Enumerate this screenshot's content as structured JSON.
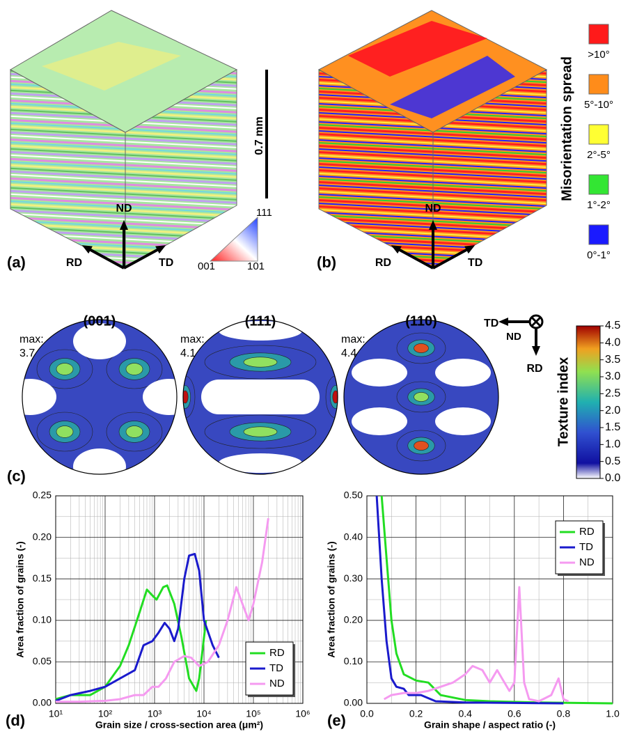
{
  "panels": {
    "a": {
      "label": "(a)",
      "axes": [
        "ND",
        "RD",
        "TD"
      ],
      "scale_bar": "0.7 mm",
      "ipf": [
        "111",
        "001",
        "101"
      ]
    },
    "b": {
      "label": "(b)",
      "axes": [
        "ND",
        "RD",
        "TD"
      ]
    },
    "misorientation_legend": {
      "title": "Misorientation spread",
      "items": [
        {
          "label": ">10°",
          "color": "#ff1a1a"
        },
        {
          "label": "5°-10°",
          "color": "#ff8c1a"
        },
        {
          "label": "2°-5°",
          "color": "#ffff33"
        },
        {
          "label": "1°-2°",
          "color": "#33e633"
        },
        {
          "label": "0°-1°",
          "color": "#1a1aff"
        }
      ]
    },
    "c": {
      "label": "(c)",
      "pole_figures": [
        {
          "title": "(001)",
          "max_label": "max:",
          "max": 3.7
        },
        {
          "title": "(111)",
          "max_label": "max:",
          "max": 4.1
        },
        {
          "title": "(110)",
          "max_label": "max:",
          "max": 4.4
        }
      ],
      "axes": [
        "TD",
        "ND",
        "RD"
      ],
      "colorbar": {
        "title": "Texture index",
        "ticks": [
          {
            "value": 4.5,
            "label": "4.5"
          },
          {
            "value": 4,
            "label": "4.0"
          },
          {
            "value": 3.5,
            "label": "3.5"
          },
          {
            "value": 3,
            "label": "3.0"
          },
          {
            "value": 2.5,
            "label": "2.5"
          },
          {
            "value": 2,
            "label": "2.0"
          },
          {
            "value": 1.5,
            "label": "1.5"
          },
          {
            "value": 1,
            "label": "1.0"
          },
          {
            "value": 0.5,
            "label": "0.5"
          },
          {
            "value": 0,
            "label": "0.0"
          }
        ]
      }
    }
  },
  "chart_data": [
    {
      "type": "line",
      "panel_label": "(d)",
      "xlabel": "Grain size / cross-section area (μm²)",
      "ylabel": "Area fraction of grains (-)",
      "xscale": "log",
      "xlim": [
        10,
        1000000
      ],
      "xticks": [
        {
          "value": 10,
          "label": "10¹"
        },
        {
          "value": 100,
          "label": "10²"
        },
        {
          "value": 1000,
          "label": "10³"
        },
        {
          "value": 10000,
          "label": "10⁴"
        },
        {
          "value": 100000,
          "label": "10⁵"
        },
        {
          "value": 1000000,
          "label": "10⁶"
        }
      ],
      "ylim": [
        0,
        0.25
      ],
      "yticks": [
        {
          "value": 0,
          "label": "0.00"
        },
        {
          "value": 0.05,
          "label": "0.05"
        },
        {
          "value": 0.1,
          "label": "0.10"
        },
        {
          "value": 0.15,
          "label": "0.15"
        },
        {
          "value": 0.2,
          "label": "0.20"
        },
        {
          "value": 0.25,
          "label": "0.25"
        }
      ],
      "grid": true,
      "legend": "lower right",
      "series": [
        {
          "name": "RD",
          "color": "#22dd22",
          "x": [
            10,
            20,
            50,
            100,
            200,
            300,
            500,
            700,
            900,
            1100,
            1500,
            1800,
            2500,
            3500,
            5000,
            7000,
            8000,
            11000
          ],
          "values": [
            0.005,
            0.01,
            0.01,
            0.02,
            0.045,
            0.07,
            0.11,
            0.137,
            0.13,
            0.125,
            0.14,
            0.142,
            0.12,
            0.08,
            0.03,
            0.015,
            0.03,
            0.1
          ]
        },
        {
          "name": "TD",
          "color": "#1a1acc",
          "x": [
            10,
            20,
            50,
            100,
            200,
            400,
            600,
            900,
            1200,
            1600,
            2000,
            2500,
            3000,
            4000,
            5000,
            6500,
            8000,
            10000,
            15000,
            20000
          ],
          "values": [
            0.003,
            0.01,
            0.015,
            0.02,
            0.03,
            0.04,
            0.07,
            0.075,
            0.085,
            0.097,
            0.09,
            0.075,
            0.09,
            0.15,
            0.178,
            0.18,
            0.16,
            0.1,
            0.07,
            0.055
          ]
        },
        {
          "name": "ND",
          "color": "#f59af0",
          "x": [
            10,
            30,
            100,
            200,
            400,
            600,
            900,
            1200,
            1700,
            2500,
            4000,
            5500,
            8000,
            12000,
            20000,
            30000,
            45000,
            60000,
            80000,
            100000,
            150000,
            200000
          ],
          "values": [
            0.002,
            0.002,
            0.003,
            0.005,
            0.01,
            0.01,
            0.02,
            0.02,
            0.03,
            0.05,
            0.057,
            0.055,
            0.045,
            0.05,
            0.07,
            0.1,
            0.14,
            0.12,
            0.1,
            0.12,
            0.17,
            0.223
          ]
        }
      ]
    },
    {
      "type": "line",
      "panel_label": "(e)",
      "xlabel": "Grain shape / aspect ratio (-)",
      "ylabel": "Area fraction of grains (-)",
      "xlim": [
        0,
        1
      ],
      "xticks": [
        {
          "value": 0,
          "label": "0.0"
        },
        {
          "value": 0.2,
          "label": "0.2"
        },
        {
          "value": 0.4,
          "label": "0.4"
        },
        {
          "value": 0.6,
          "label": "0.6"
        },
        {
          "value": 0.8,
          "label": "0.8"
        },
        {
          "value": 1,
          "label": "1.0"
        }
      ],
      "ylim": [
        0,
        0.5
      ],
      "yticks": [
        {
          "value": 0,
          "label": "0.00"
        },
        {
          "value": 0.1,
          "label": "0.10"
        },
        {
          "value": 0.2,
          "label": "0.20"
        },
        {
          "value": 0.3,
          "label": "0.30"
        },
        {
          "value": 0.4,
          "label": "0.40"
        },
        {
          "value": 0.5,
          "label": "0.50"
        }
      ],
      "grid": true,
      "legend": "upper right",
      "series": [
        {
          "name": "RD",
          "color": "#22dd22",
          "x": [
            0.06,
            0.08,
            0.1,
            0.12,
            0.15,
            0.2,
            0.25,
            0.3,
            0.4,
            0.5,
            0.7,
            1.0
          ],
          "values": [
            0.5,
            0.35,
            0.2,
            0.12,
            0.07,
            0.055,
            0.05,
            0.02,
            0.008,
            0.005,
            0.002,
            0
          ]
        },
        {
          "name": "TD",
          "color": "#1a1acc",
          "x": [
            0.04,
            0.06,
            0.08,
            0.1,
            0.12,
            0.15,
            0.17,
            0.22,
            0.28,
            0.4,
            0.6,
            0.8
          ],
          "values": [
            0.5,
            0.3,
            0.15,
            0.06,
            0.04,
            0.035,
            0.02,
            0.02,
            0.005,
            0.002,
            0.001,
            0
          ]
        },
        {
          "name": "ND",
          "color": "#f59af0",
          "x": [
            0.07,
            0.1,
            0.15,
            0.2,
            0.25,
            0.3,
            0.35,
            0.4,
            0.43,
            0.47,
            0.5,
            0.53,
            0.55,
            0.58,
            0.6,
            0.62,
            0.64,
            0.66,
            0.7,
            0.75,
            0.78,
            0.8,
            0.82
          ],
          "values": [
            0.01,
            0.02,
            0.025,
            0.025,
            0.03,
            0.04,
            0.05,
            0.07,
            0.09,
            0.08,
            0.05,
            0.08,
            0.06,
            0.03,
            0.05,
            0.28,
            0.05,
            0.01,
            0.005,
            0.02,
            0.06,
            0.01,
            0.005
          ]
        }
      ]
    }
  ]
}
